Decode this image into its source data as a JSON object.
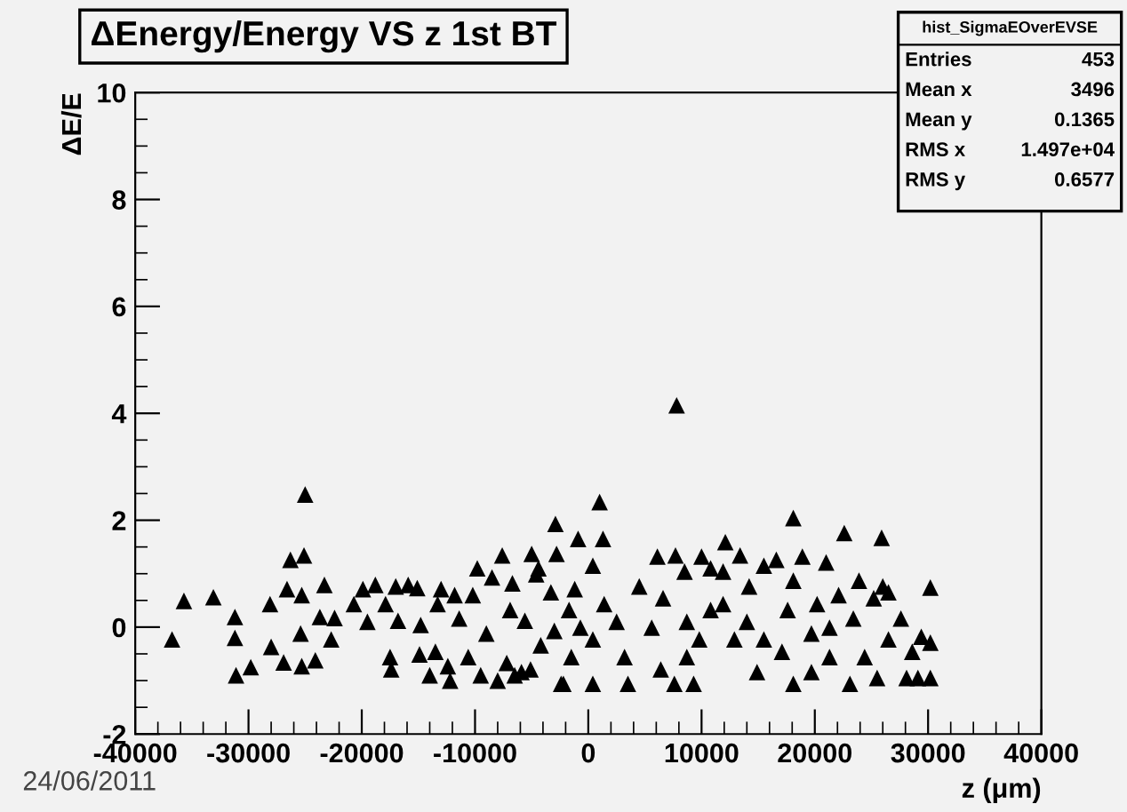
{
  "chart_data": {
    "type": "scatter",
    "title": "ΔEnergy/Energy VS z 1st BT",
    "xlabel": "z (μm)",
    "ylabel": "ΔE/E",
    "x": [
      -36750,
      -35700,
      -33100,
      -31200,
      -31200,
      -31100,
      -29800,
      -28000,
      -28100,
      -26900,
      -26300,
      -25100,
      -25000,
      -26600,
      -25300,
      -25400,
      -25300,
      -24100,
      -23300,
      -23700,
      -22700,
      -22400,
      -20700,
      -19900,
      -18800,
      -19500,
      -17500,
      -17400,
      -17900,
      -17000,
      -15900,
      -15100,
      -16800,
      -14800,
      -14900,
      -13000,
      -13300,
      -13500,
      -12400,
      -12200,
      -11800,
      -11400,
      -10600,
      -10200,
      -9800,
      -9500,
      -9000,
      -8500,
      -7600,
      -7200,
      -6900,
      -6700,
      -5900,
      -5600,
      -5000,
      -5100,
      -4600,
      -4200,
      -2900,
      -2800,
      -2400,
      -3000,
      -900,
      -1200,
      -1500,
      -700,
      1000,
      1300,
      400,
      -2200,
      400,
      3500,
      3200,
      2500,
      4500,
      6100,
      7700,
      6400,
      7600,
      8500,
      9300,
      10000,
      10800,
      12100,
      11900,
      13400,
      14200,
      12900,
      14900,
      15500,
      16600,
      18100,
      18100,
      18900,
      19700,
      21000,
      20200,
      22600,
      22100,
      23100,
      23900,
      23400,
      25900,
      26000,
      25200,
      26500,
      27600,
      26500,
      28100,
      28600,
      29400,
      30200,
      30200,
      30200,
      29100,
      25500,
      24400,
      21300,
      17100,
      17600,
      19700,
      21300,
      15500,
      10800,
      9800,
      8700,
      5600,
      6600,
      1400,
      -1700,
      -3300,
      400,
      11900,
      14000,
      8700,
      18100,
      -4400,
      7800,
      -14000,
      -8000,
      -6500
    ],
    "values": [
      -0.23,
      0.49,
      0.56,
      0.19,
      -0.2,
      -0.9,
      -0.75,
      -0.37,
      0.43,
      -0.66,
      1.26,
      1.34,
      2.48,
      0.71,
      0.6,
      -0.12,
      -0.73,
      -0.62,
      0.79,
      0.19,
      -0.23,
      0.17,
      0.43,
      0.71,
      0.79,
      0.1,
      -0.56,
      -0.79,
      0.43,
      0.76,
      0.79,
      0.73,
      0.12,
      0.04,
      -0.51,
      0.71,
      0.43,
      -0.46,
      -0.73,
      -1.0,
      0.6,
      0.16,
      -0.56,
      0.6,
      1.1,
      -0.9,
      -0.12,
      0.93,
      1.34,
      -0.67,
      0.32,
      0.82,
      -0.84,
      0.12,
      1.37,
      -0.79,
      0.99,
      -0.34,
      1.93,
      1.37,
      -1.06,
      -0.07,
      1.65,
      0.71,
      -0.56,
      -0.01,
      2.34,
      1.65,
      1.15,
      -1.06,
      -1.06,
      -1.06,
      -0.56,
      0.1,
      0.76,
      1.32,
      1.34,
      -0.79,
      -1.06,
      1.04,
      -1.06,
      1.32,
      1.1,
      1.59,
      1.04,
      1.34,
      0.76,
      -0.23,
      -0.84,
      1.15,
      1.26,
      2.04,
      -1.06,
      1.32,
      -0.84,
      1.21,
      0.43,
      1.76,
      0.6,
      -1.06,
      0.87,
      0.16,
      1.67,
      0.76,
      0.54,
      0.65,
      0.16,
      -0.23,
      -0.95,
      -0.46,
      -0.18,
      0.74,
      -0.29,
      -0.95,
      -0.95,
      -0.95,
      -0.56,
      -0.56,
      -0.46,
      0.32,
      -0.12,
      -0.01,
      -0.23,
      0.32,
      -0.23,
      -0.56,
      -0.01,
      0.54,
      0.43,
      0.32,
      0.65,
      -0.23,
      0.43,
      0.1,
      0.1,
      0.87,
      1.1,
      4.15,
      -0.9,
      -1.0,
      -0.9
    ],
    "color": "#000000",
    "marker": "triangle",
    "xlim": [
      -40000,
      40000
    ],
    "xticks": [
      -40000,
      -30000,
      -20000,
      -10000,
      0,
      10000,
      20000,
      30000,
      40000
    ],
    "ylim": [
      -2,
      10
    ],
    "yticks": [
      -2,
      0,
      2,
      4,
      6,
      8,
      10
    ],
    "grid": false,
    "annotations": [
      "hist_SigmaEOverEVSE",
      "Entries",
      "453",
      "Mean x",
      "3496",
      "Mean y",
      "0.1365",
      "RMS x",
      "1.497e+04",
      "RMS y",
      "0.6577",
      "24/06/2011"
    ]
  }
}
